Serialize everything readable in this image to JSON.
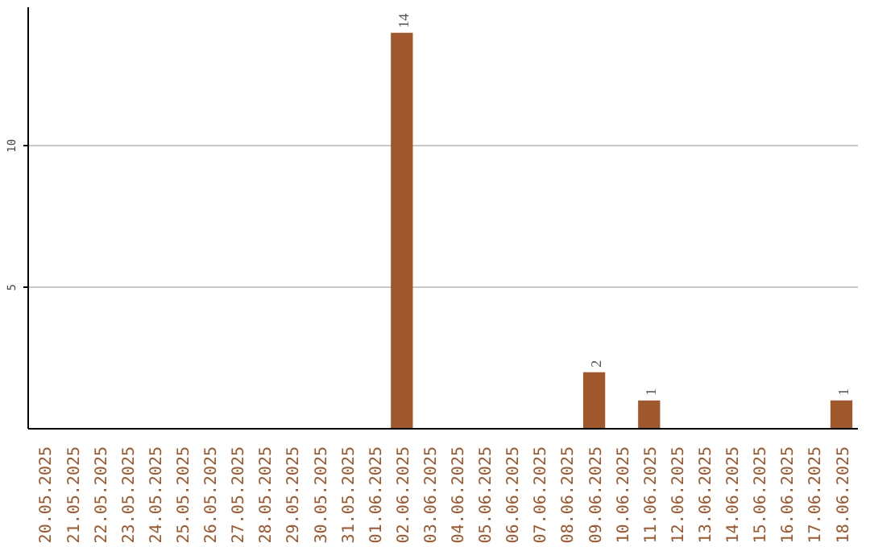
{
  "chart_data": {
    "type": "bar",
    "categories": [
      "20.05.2025",
      "21.05.2025",
      "22.05.2025",
      "23.05.2025",
      "24.05.2025",
      "25.05.2025",
      "26.05.2025",
      "27.05.2025",
      "28.05.2025",
      "29.05.2025",
      "30.05.2025",
      "31.05.2025",
      "01.06.2025",
      "02.06.2025",
      "03.06.2025",
      "04.06.2025",
      "05.06.2025",
      "06.06.2025",
      "07.06.2025",
      "08.06.2025",
      "09.06.2025",
      "10.06.2025",
      "11.06.2025",
      "12.06.2025",
      "13.06.2025",
      "14.06.2025",
      "15.06.2025",
      "16.06.2025",
      "17.06.2025",
      "18.06.2025"
    ],
    "values": [
      0,
      0,
      0,
      0,
      0,
      0,
      0,
      0,
      0,
      0,
      0,
      0,
      0,
      14,
      0,
      0,
      0,
      0,
      0,
      0,
      2,
      0,
      1,
      0,
      0,
      0,
      0,
      0,
      0,
      1
    ],
    "value_labels": [
      null,
      null,
      null,
      null,
      null,
      null,
      null,
      null,
      null,
      null,
      null,
      null,
      null,
      "14",
      null,
      null,
      null,
      null,
      null,
      null,
      "2",
      null,
      "1",
      null,
      null,
      null,
      null,
      null,
      null,
      "1"
    ],
    "color": "#a0572b",
    "ylim": [
      0,
      14.9
    ],
    "yticks": [
      5,
      10
    ],
    "grid": "y"
  }
}
